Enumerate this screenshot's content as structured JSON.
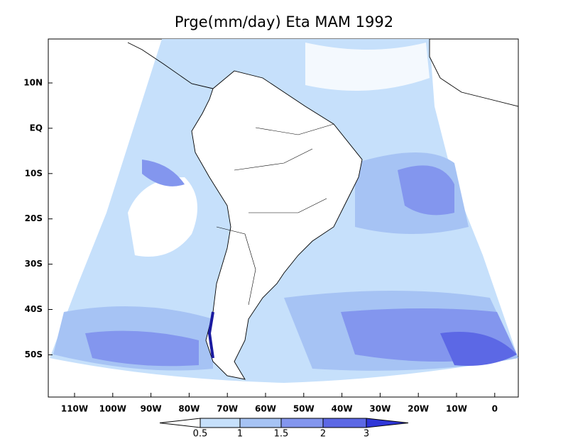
{
  "title": "Prge(mm/day) Eta MAM 1992",
  "lat_labels": [
    "10N",
    "EQ",
    "10S",
    "20S",
    "30S",
    "40S",
    "50S"
  ],
  "lon_labels": [
    "110W",
    "100W",
    "90W",
    "80W",
    "70W",
    "60W",
    "50W",
    "40W",
    "30W",
    "20W",
    "10W",
    "0"
  ],
  "colorbar": {
    "levels": [
      0.5,
      1,
      1.5,
      2,
      3
    ],
    "colors": [
      "#ffffff",
      "#c6e0fb",
      "#a6c3f4",
      "#8396ee",
      "#5c68e5",
      "#2f36d8"
    ]
  }
}
